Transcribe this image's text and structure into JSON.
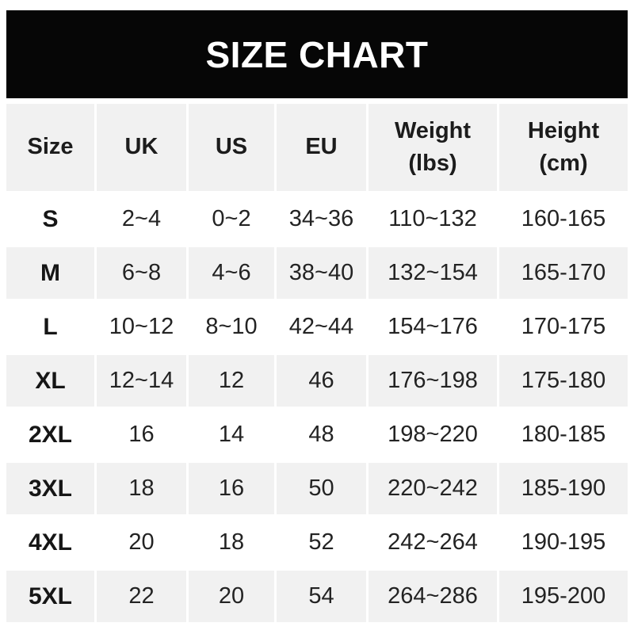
{
  "banner": {
    "title": "SIZE CHART"
  },
  "colors": {
    "banner_bg": "#060606",
    "banner_text": "#ffffff",
    "row_alt_bg": "#f1f1f1",
    "page_bg": "#ffffff",
    "text": "#232323"
  },
  "chart_data": {
    "type": "table",
    "title": "SIZE CHART",
    "columns": [
      {
        "label": "Size",
        "sublabel": ""
      },
      {
        "label": "UK",
        "sublabel": ""
      },
      {
        "label": "US",
        "sublabel": ""
      },
      {
        "label": "EU",
        "sublabel": ""
      },
      {
        "label": "Weight",
        "sublabel": "(lbs)"
      },
      {
        "label": "Height",
        "sublabel": "(cm)"
      }
    ],
    "rows": [
      {
        "size": "S",
        "uk": "2~4",
        "us": "0~2",
        "eu": "34~36",
        "weight_lbs": "110~132",
        "height_cm": "160-165"
      },
      {
        "size": "M",
        "uk": "6~8",
        "us": "4~6",
        "eu": "38~40",
        "weight_lbs": "132~154",
        "height_cm": "165-170"
      },
      {
        "size": "L",
        "uk": "10~12",
        "us": "8~10",
        "eu": "42~44",
        "weight_lbs": "154~176",
        "height_cm": "170-175"
      },
      {
        "size": "XL",
        "uk": "12~14",
        "us": "12",
        "eu": "46",
        "weight_lbs": "176~198",
        "height_cm": "175-180"
      },
      {
        "size": "2XL",
        "uk": "16",
        "us": "14",
        "eu": "48",
        "weight_lbs": "198~220",
        "height_cm": "180-185"
      },
      {
        "size": "3XL",
        "uk": "18",
        "us": "16",
        "eu": "50",
        "weight_lbs": "220~242",
        "height_cm": "185-190"
      },
      {
        "size": "4XL",
        "uk": "20",
        "us": "18",
        "eu": "52",
        "weight_lbs": "242~264",
        "height_cm": "190-195"
      },
      {
        "size": "5XL",
        "uk": "22",
        "us": "20",
        "eu": "54",
        "weight_lbs": "264~286",
        "height_cm": "195-200"
      }
    ]
  }
}
